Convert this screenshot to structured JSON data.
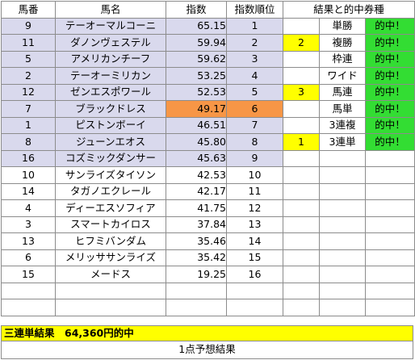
{
  "header": {
    "horse_no": "馬番",
    "horse_name": "馬名",
    "index": "指数",
    "index_rank": "指数順位",
    "result_group": "結果と的中券種"
  },
  "rows": [
    {
      "no": "9",
      "name": "テーオーマルコーニ",
      "index": "65.15",
      "rank": "1",
      "res": "",
      "bet": "単勝",
      "hit": "的中！"
    },
    {
      "no": "11",
      "name": "ダノンヴェステル",
      "index": "59.94",
      "rank": "2",
      "res": "2",
      "bet": "複勝",
      "hit": "的中！"
    },
    {
      "no": "5",
      "name": "アメリカンチーフ",
      "index": "59.62",
      "rank": "3",
      "res": "",
      "bet": "枠連",
      "hit": "的中！"
    },
    {
      "no": "2",
      "name": "テーオーミリカン",
      "index": "53.25",
      "rank": "4",
      "res": "",
      "bet": "ワイド",
      "hit": "的中！"
    },
    {
      "no": "12",
      "name": "ゼンエスポワール",
      "index": "52.53",
      "rank": "5",
      "res": "3",
      "bet": "馬連",
      "hit": "的中！"
    },
    {
      "no": "7",
      "name": "ブラックドレス",
      "index": "49.17",
      "rank": "6",
      "res": "",
      "bet": "馬単",
      "hit": "的中！"
    },
    {
      "no": "1",
      "name": "ピストンボーイ",
      "index": "46.51",
      "rank": "7",
      "res": "",
      "bet": "3連複",
      "hit": "的中！"
    },
    {
      "no": "8",
      "name": "ジューンエオス",
      "index": "45.80",
      "rank": "8",
      "res": "1",
      "bet": "3連単",
      "hit": "的中！"
    },
    {
      "no": "16",
      "name": "コズミックダンサー",
      "index": "45.63",
      "rank": "9",
      "res": "",
      "bet": "",
      "hit": ""
    },
    {
      "no": "10",
      "name": "サンライズタイソン",
      "index": "42.53",
      "rank": "10",
      "res": "",
      "bet": "",
      "hit": ""
    },
    {
      "no": "14",
      "name": "タガノエクレール",
      "index": "42.17",
      "rank": "11",
      "res": "",
      "bet": "",
      "hit": ""
    },
    {
      "no": "4",
      "name": "ディーエスソフィア",
      "index": "41.75",
      "rank": "12",
      "res": "",
      "bet": "",
      "hit": ""
    },
    {
      "no": "3",
      "name": "スマートカイロス",
      "index": "37.84",
      "rank": "13",
      "res": "",
      "bet": "",
      "hit": ""
    },
    {
      "no": "13",
      "name": "ヒフミバンダム",
      "index": "35.46",
      "rank": "14",
      "res": "",
      "bet": "",
      "hit": ""
    },
    {
      "no": "6",
      "name": "メリッササンライズ",
      "index": "35.42",
      "rank": "15",
      "res": "",
      "bet": "",
      "hit": ""
    },
    {
      "no": "15",
      "name": "メードス",
      "index": "19.25",
      "rank": "16",
      "res": "",
      "bet": "",
      "hit": ""
    },
    {
      "no": "",
      "name": "",
      "index": "",
      "rank": "",
      "res": "",
      "bet": "",
      "hit": ""
    },
    {
      "no": "",
      "name": "",
      "index": "",
      "rank": "",
      "res": "",
      "bet": "",
      "hit": ""
    }
  ],
  "banner": "三連単結果　64,360円的中",
  "footer": "1点予想結果",
  "colors": {
    "rank_highlight": "#d9d9ed",
    "index_highlight": "#f79646",
    "result_highlight": "#ffff00",
    "hit_highlight": "#33dd33"
  }
}
